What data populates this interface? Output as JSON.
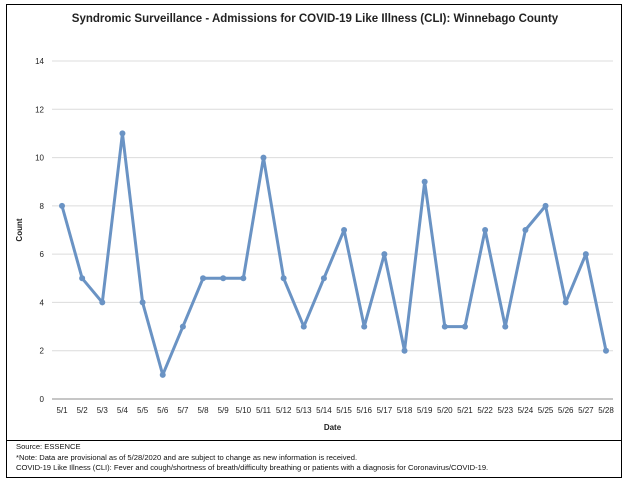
{
  "chart_data": {
    "type": "line",
    "title": "Syndromic Surveillance - Admissions for COVID-19 Like Illness (CLI): Winnebago County",
    "xlabel": "Date",
    "ylabel": "Count",
    "ylim": [
      0,
      14
    ],
    "yticks": [
      0,
      2,
      4,
      6,
      8,
      10,
      12,
      14
    ],
    "grid": true,
    "categories": [
      "5/1",
      "5/2",
      "5/3",
      "5/4",
      "5/5",
      "5/6",
      "5/7",
      "5/8",
      "5/9",
      "5/10",
      "5/11",
      "5/12",
      "5/13",
      "5/14",
      "5/15",
      "5/16",
      "5/17",
      "5/18",
      "5/19",
      "5/20",
      "5/21",
      "5/22",
      "5/23",
      "5/24",
      "5/25",
      "5/26",
      "5/27",
      "5/28"
    ],
    "series": [
      {
        "values": [
          8,
          5,
          4,
          11,
          4,
          1,
          3,
          5,
          5,
          5,
          10,
          5,
          3,
          5,
          7,
          3,
          6,
          2,
          9,
          3,
          3,
          7,
          3,
          7,
          8,
          4,
          6,
          2
        ],
        "color": "#6a93c4"
      }
    ]
  },
  "footer": {
    "source": "Source: ESSENCE",
    "note": "*Note: Data are provisional as of 5/28/2020 and are subject to change as new information is received.",
    "definition": "COVID-19 Like Illness (CLI): Fever and cough/shortness of breath/difficulty breathing or patients with a diagnosis for Coronavirus/COVID-19."
  }
}
